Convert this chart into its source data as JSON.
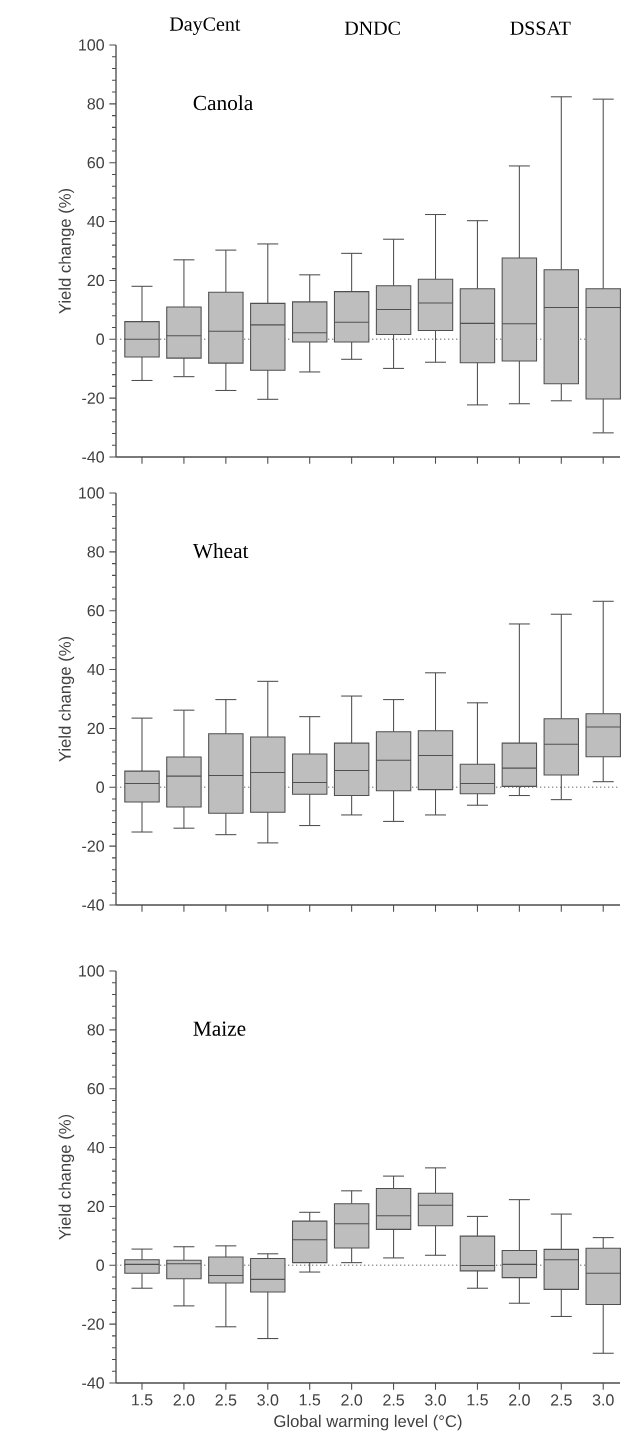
{
  "chart_data": [
    {
      "type": "box",
      "title": "Canola",
      "ylabel": "Yield change (%)",
      "color": "#bebebe",
      "annotations": [
        "DayCent",
        "DNDC",
        "DSSAT"
      ],
      "categories": [
        "1.5",
        "2.0",
        "2.5",
        "3.0",
        "1.5",
        "2.0",
        "2.5",
        "3.0",
        "1.5",
        "2.0",
        "2.5",
        "3.0"
      ],
      "boxes": [
        {
          "low": -14,
          "q1": -6,
          "median": 0,
          "q3": 6,
          "high": 18
        },
        {
          "low": -12.7,
          "q1": -6.4,
          "median": 1.2,
          "q3": 11,
          "high": 27
        },
        {
          "low": -17.4,
          "q1": -8.1,
          "median": 2.7,
          "q3": 16,
          "high": 30.3
        },
        {
          "low": -20.4,
          "q1": -10.5,
          "median": 4.9,
          "q3": 12.2,
          "high": 32.4
        },
        {
          "low": -11.1,
          "q1": -0.9,
          "median": 2.2,
          "q3": 12.7,
          "high": 21.9
        },
        {
          "low": -6.8,
          "q1": -0.9,
          "median": 5.8,
          "q3": 16.2,
          "high": 29.2
        },
        {
          "low": -9.9,
          "q1": 1.6,
          "median": 10.1,
          "q3": 18.2,
          "high": 34
        },
        {
          "low": -7.8,
          "q1": 3,
          "median": 12.3,
          "q3": 20.4,
          "high": 42.4
        },
        {
          "low": -22.3,
          "q1": -8,
          "median": 5.4,
          "q3": 17.2,
          "high": 40.3
        },
        {
          "low": -21.9,
          "q1": -7.4,
          "median": 5.3,
          "q3": 27.6,
          "high": 58.9
        },
        {
          "low": -20.9,
          "q1": -15.1,
          "median": 10.8,
          "q3": 23.6,
          "high": 82.4
        },
        {
          "low": -31.8,
          "q1": -20.3,
          "median": 10.8,
          "q3": 17.2,
          "high": 81.6
        }
      ],
      "ylim": [
        -40,
        100
      ],
      "yticks": [
        -40,
        -20,
        0,
        20,
        40,
        60,
        80,
        100
      ],
      "ref_lines": [
        {
          "axis": "y",
          "value": 0,
          "color": "#999999",
          "line_style": "dotted"
        }
      ],
      "tick_labels": "y"
    },
    {
      "type": "box",
      "title": "Wheat",
      "ylabel": "Yield change (%)",
      "color": "#bebebe",
      "categories": [
        "1.5",
        "2.0",
        "2.5",
        "3.0",
        "1.5",
        "2.0",
        "2.5",
        "3.0",
        "1.5",
        "2.0",
        "2.5",
        "3.0"
      ],
      "boxes": [
        {
          "low": -15.2,
          "q1": -5,
          "median": 1.3,
          "q3": 5.5,
          "high": 23.5
        },
        {
          "low": -13.9,
          "q1": -6.7,
          "median": 3.8,
          "q3": 10.3,
          "high": 26.2
        },
        {
          "low": -16.1,
          "q1": -8.8,
          "median": 4,
          "q3": 18.2,
          "high": 29.8
        },
        {
          "low": -18.9,
          "q1": -8.5,
          "median": 5,
          "q3": 17.1,
          "high": 36
        },
        {
          "low": -13,
          "q1": -2.4,
          "median": 1.6,
          "q3": 11.3,
          "high": 24
        },
        {
          "low": -9.4,
          "q1": -2.8,
          "median": 5.7,
          "q3": 15,
          "high": 31
        },
        {
          "low": -11.6,
          "q1": -1.2,
          "median": 9.2,
          "q3": 18.9,
          "high": 29.8
        },
        {
          "low": -9.4,
          "q1": -0.8,
          "median": 10.8,
          "q3": 19.2,
          "high": 38.9
        },
        {
          "low": -6.1,
          "q1": -2.2,
          "median": 1.3,
          "q3": 7.8,
          "high": 28.7
        },
        {
          "low": -2.8,
          "q1": 0.3,
          "median": 6.5,
          "q3": 15,
          "high": 55.5
        },
        {
          "low": -4.2,
          "q1": 4.2,
          "median": 14.6,
          "q3": 23.3,
          "high": 58.8
        },
        {
          "low": 1.9,
          "q1": 10.4,
          "median": 20.5,
          "q3": 25,
          "high": 63.2
        }
      ],
      "ylim": [
        -40,
        100
      ],
      "yticks": [
        -40,
        -20,
        0,
        20,
        40,
        60,
        80,
        100
      ],
      "ref_lines": [
        {
          "axis": "y",
          "value": 0,
          "color": "#999999",
          "line_style": "dotted"
        }
      ],
      "tick_labels": "y"
    },
    {
      "type": "box",
      "title": "Maize",
      "ylabel": "Yield change (%)",
      "xlabel": "Global warming level (°C)",
      "color": "#bebebe",
      "categories": [
        "1.5",
        "2.0",
        "2.5",
        "3.0",
        "1.5",
        "2.0",
        "2.5",
        "3.0",
        "1.5",
        "2.0",
        "2.5",
        "3.0"
      ],
      "boxes": [
        {
          "low": -7.8,
          "q1": -2.7,
          "median": 0.3,
          "q3": 1.9,
          "high": 5.5
        },
        {
          "low": -13.8,
          "q1": -4.6,
          "median": 0.5,
          "q3": 1.7,
          "high": 6.3
        },
        {
          "low": -20.9,
          "q1": -6,
          "median": -3.5,
          "q3": 2.8,
          "high": 6.6
        },
        {
          "low": -24.9,
          "q1": -9.1,
          "median": -4.8,
          "q3": 2.3,
          "high": 3.9
        },
        {
          "low": -2.3,
          "q1": 0.9,
          "median": 8.7,
          "q3": 15,
          "high": 18
        },
        {
          "low": 0.9,
          "q1": 5.9,
          "median": 14.1,
          "q3": 20.9,
          "high": 25.3
        },
        {
          "low": 2.5,
          "q1": 12.2,
          "median": 16.8,
          "q3": 26.1,
          "high": 30.3
        },
        {
          "low": 3.4,
          "q1": 13.4,
          "median": 20.4,
          "q3": 24.5,
          "high": 33.1
        },
        {
          "low": -7.8,
          "q1": -1.9,
          "median": -0.1,
          "q3": 9.9,
          "high": 16.6
        },
        {
          "low": -12.9,
          "q1": -4.2,
          "median": 0.3,
          "q3": 5,
          "high": 22.3
        },
        {
          "low": -17.4,
          "q1": -8.2,
          "median": 1.9,
          "q3": 5.4,
          "high": 17.4
        },
        {
          "low": -29.9,
          "q1": -13.3,
          "median": -2.7,
          "q3": 5.8,
          "high": 9.4
        }
      ],
      "ylim": [
        -40,
        100
      ],
      "yticks": [
        -40,
        -20,
        0,
        20,
        40,
        60,
        80,
        100
      ],
      "ref_lines": [
        {
          "axis": "y",
          "value": 0,
          "color": "#999999",
          "line_style": "dotted"
        }
      ]
    }
  ]
}
